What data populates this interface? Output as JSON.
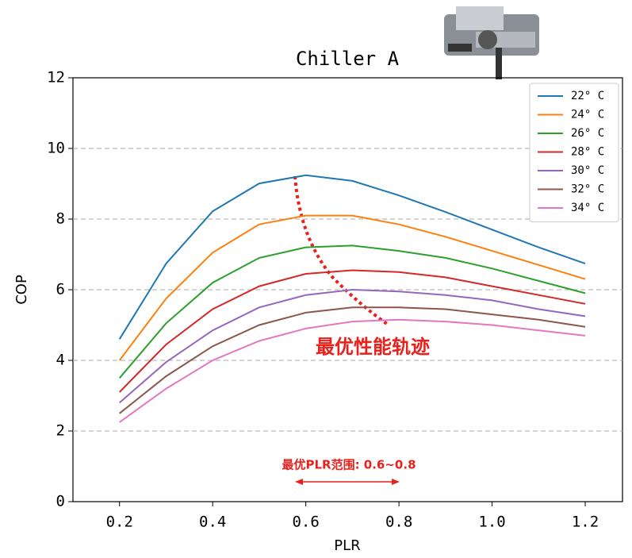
{
  "chart_data": {
    "type": "line",
    "title": "Chiller A",
    "x_label": "PLR",
    "y_label": "COP",
    "x": [
      0.2,
      0.3,
      0.4,
      0.5,
      0.6,
      0.7,
      0.8,
      0.9,
      1.0,
      1.1,
      1.2
    ],
    "series": [
      {
        "name": "22° C",
        "color": "#1f77b4",
        "values": [
          4.6,
          6.74,
          8.22,
          9.01,
          9.24,
          9.08,
          8.67,
          8.2,
          7.7,
          7.2,
          6.74
        ]
      },
      {
        "name": "24° C",
        "color": "#ff7f0e",
        "values": [
          4.0,
          5.75,
          7.05,
          7.85,
          8.1,
          8.1,
          7.85,
          7.5,
          7.1,
          6.7,
          6.3
        ]
      },
      {
        "name": "26° C",
        "color": "#2ca02c",
        "values": [
          3.5,
          5.05,
          6.2,
          6.9,
          7.2,
          7.25,
          7.1,
          6.9,
          6.6,
          6.25,
          5.9
        ]
      },
      {
        "name": "28° C",
        "color": "#d62728",
        "values": [
          3.1,
          4.45,
          5.45,
          6.1,
          6.45,
          6.55,
          6.5,
          6.35,
          6.1,
          5.85,
          5.6
        ]
      },
      {
        "name": "30° C",
        "color": "#9467bd",
        "values": [
          2.8,
          3.95,
          4.85,
          5.5,
          5.85,
          6.0,
          5.95,
          5.85,
          5.7,
          5.45,
          5.25
        ]
      },
      {
        "name": "32° C",
        "color": "#8c564b",
        "values": [
          2.5,
          3.55,
          4.4,
          5.0,
          5.35,
          5.5,
          5.5,
          5.45,
          5.3,
          5.15,
          4.95
        ]
      },
      {
        "name": "34° C",
        "color": "#e377c2",
        "values": [
          2.25,
          3.2,
          4.0,
          4.55,
          4.9,
          5.1,
          5.15,
          5.1,
          5.0,
          4.85,
          4.7
        ]
      }
    ],
    "xlim": [
      0.1,
      1.28
    ],
    "ylim": [
      0,
      12
    ],
    "xticks": [
      0.2,
      0.4,
      0.6,
      0.8,
      {
        "value": 1,
        "label": "1.0"
      },
      1.2
    ],
    "yticks": [
      0,
      2,
      4,
      6,
      8,
      10,
      12
    ],
    "grid": true,
    "legend": "upper right",
    "annotations": [
      "最优性能轨迹",
      "最优PLR范围: 0.6~0.8"
    ]
  }
}
